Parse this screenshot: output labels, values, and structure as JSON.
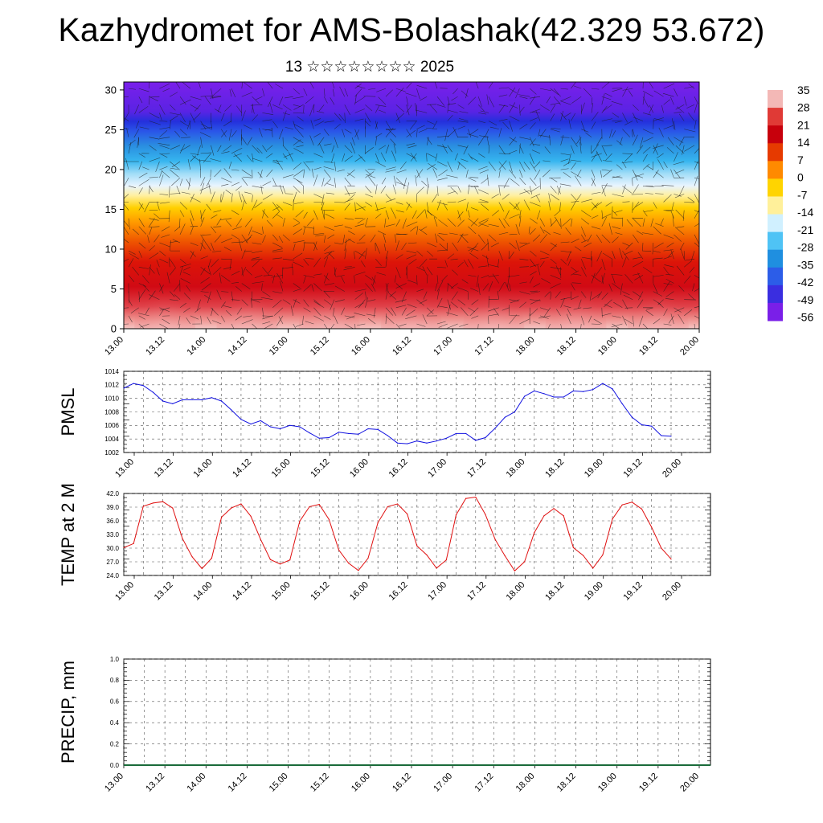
{
  "title": "Kazhydromet for AMS-Bolashak(42.329 53.672)",
  "subtitle": "13 ☆☆☆☆☆☆☆☆ 2025",
  "time_ticks": [
    "13.00",
    "13.12",
    "14.00",
    "14.12",
    "15.00",
    "15.12",
    "16.00",
    "16.12",
    "17.00",
    "17.12",
    "18.00",
    "18.12",
    "19.00",
    "19.12",
    "20.00"
  ],
  "chart_data": [
    {
      "type": "heatmap",
      "title": "",
      "ylim": [
        0,
        31
      ],
      "yticks": [
        "0",
        "5",
        "10",
        "15",
        "20",
        "25",
        "30"
      ],
      "colorbar": {
        "labels": [
          "35",
          "28",
          "21",
          "14",
          "7",
          "0",
          "-7",
          "-14",
          "-21",
          "-28",
          "-35",
          "-42",
          "-49",
          "-56"
        ],
        "colors": [
          "#f3b8b6",
          "#e03a36",
          "#c7000c",
          "#e63a00",
          "#ff8a00",
          "#ffd400",
          "#fff09a",
          "#d0f0ff",
          "#4fc3f5",
          "#1f8fe0",
          "#2c5de8",
          "#3a2ee0",
          "#7a1fe8"
        ]
      },
      "approx_profile": {
        "height": [
          0,
          3,
          6,
          9,
          12,
          14,
          16,
          18,
          20,
          22,
          24,
          26,
          28,
          31
        ],
        "value": [
          33,
          24,
          20,
          17,
          12,
          6,
          -2,
          -14,
          -30,
          -40,
          -48,
          -57,
          -60,
          -60
        ]
      },
      "wind_vectors": true
    },
    {
      "type": "line",
      "ylabel": "PMSL",
      "ylim": [
        1002,
        1014
      ],
      "yticks": [
        "1002",
        "1004",
        "1006",
        "1008",
        "1010",
        "1012",
        "1014"
      ],
      "color": "#1010e0",
      "x": [
        0,
        3,
        6,
        9,
        12,
        15,
        18,
        21,
        24,
        27,
        30,
        33,
        36,
        39,
        42,
        45,
        48,
        51,
        54,
        57,
        60,
        63,
        66,
        69,
        72,
        75,
        78,
        81,
        84,
        87,
        90,
        93,
        96,
        99,
        102,
        105,
        108,
        111,
        114,
        117,
        120,
        123,
        126,
        129,
        132,
        135,
        138,
        141,
        144,
        147,
        150,
        153,
        156,
        159,
        162,
        165,
        168
      ],
      "values": [
        1011.5,
        1012.2,
        1011.9,
        1010.9,
        1009.6,
        1009.2,
        1009.8,
        1009.8,
        1009.8,
        1010.1,
        1009.6,
        1008.3,
        1006.9,
        1006.2,
        1006.7,
        1005.8,
        1005.5,
        1006.0,
        1005.8,
        1004.9,
        1004.1,
        1004.2,
        1005.0,
        1004.8,
        1004.7,
        1005.5,
        1005.4,
        1004.5,
        1003.4,
        1003.3,
        1003.7,
        1003.4,
        1003.7,
        1004.1,
        1004.8,
        1004.8,
        1003.8,
        1004.2,
        1005.6,
        1007.2,
        1008.0,
        1010.3,
        1011.1,
        1010.7,
        1010.2,
        1010.2,
        1011.1,
        1011.0,
        1011.3,
        1012.2,
        1011.4,
        1009.2,
        1007.2,
        1006.1,
        1005.9,
        1004.5,
        1004.4
      ]
    },
    {
      "type": "line",
      "ylabel": "TEMP at 2 M",
      "ylim": [
        24,
        42
      ],
      "yticks": [
        "24.0",
        "27.0",
        "30.0",
        "33.0",
        "36.0",
        "39.0",
        "42.0"
      ],
      "color": "#e01010",
      "x": [
        0,
        3,
        6,
        9,
        12,
        15,
        18,
        21,
        24,
        27,
        30,
        33,
        36,
        39,
        42,
        45,
        48,
        51,
        54,
        57,
        60,
        63,
        66,
        69,
        72,
        75,
        78,
        81,
        84,
        87,
        90,
        93,
        96,
        99,
        102,
        105,
        108,
        111,
        114,
        117,
        120,
        123,
        126,
        129,
        132,
        135,
        138,
        141,
        144,
        147,
        150,
        153,
        156,
        159,
        162,
        165,
        168
      ],
      "values": [
        30.1,
        31.0,
        39.2,
        39.9,
        40.2,
        38.8,
        32.1,
        28.1,
        25.5,
        27.8,
        36.8,
        38.8,
        39.7,
        37.0,
        31.9,
        27.5,
        26.5,
        27.4,
        35.9,
        39.1,
        39.6,
        36.3,
        29.6,
        26.7,
        25.1,
        27.8,
        35.6,
        39.1,
        39.7,
        37.5,
        30.5,
        28.5,
        25.6,
        27.4,
        37.3,
        40.9,
        41.2,
        37.4,
        31.9,
        28.3,
        25.0,
        27.0,
        33.4,
        37.1,
        38.7,
        37.1,
        30.1,
        28.4,
        25.6,
        28.5,
        36.4,
        39.5,
        40.1,
        38.6,
        34.6,
        30.0,
        27.6
      ]
    },
    {
      "type": "line",
      "ylabel": "PRECIP, mm",
      "ylim": [
        0,
        1
      ],
      "yticks": [
        "0.0",
        "0.2",
        "0.4",
        "0.6",
        "0.8",
        "1.0"
      ],
      "color": "#1a6b3a",
      "x": [
        0,
        168
      ],
      "values": [
        0,
        0
      ]
    }
  ]
}
